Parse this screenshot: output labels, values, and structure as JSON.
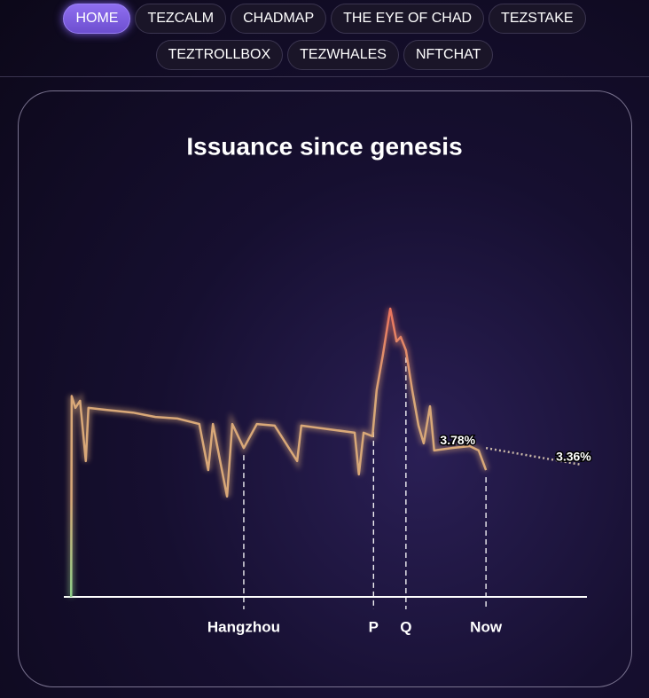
{
  "nav": {
    "items": [
      "HOME",
      "TEZCALM",
      "CHADMAP",
      "THE EYE OF CHAD",
      "TEZSTAKE",
      "TEZTROLLBOX",
      "TEZWHALES",
      "NFTCHAT"
    ]
  },
  "chart_data": {
    "type": "line",
    "title": "Issuance since genesis",
    "xlim": [
      0,
      100
    ],
    "ylim": [
      0,
      7.5
    ],
    "gradient": [
      "#8fd18a",
      "#d9a878",
      "#d9a878",
      "#ec6f5a"
    ],
    "series": [
      {
        "color": "#d9a878",
        "x": [
          1.4,
          1.5,
          2.2,
          3.1,
          4.2,
          4.7,
          8.1,
          13.2,
          17.5,
          21.7,
          25.9,
          27.6,
          28.5,
          31.2,
          32.2,
          34.4,
          36.9,
          40.3,
          44.6,
          45.4,
          50.5,
          55.6,
          56.4,
          57.3,
          59.0,
          59.8,
          61.0,
          62.4,
          63.6,
          64.4,
          65.4,
          66.6,
          67.8,
          68.8,
          70.0,
          70.8,
          74.2,
          77.6,
          79.3,
          80.7
        ],
        "values": [
          0,
          5.1,
          4.8,
          4.98,
          3.45,
          4.8,
          4.75,
          4.68,
          4.57,
          4.53,
          4.39,
          3.22,
          4.39,
          2.55,
          4.39,
          3.78,
          4.39,
          4.35,
          3.45,
          4.35,
          4.26,
          4.17,
          3.11,
          4.17,
          4.08,
          5.25,
          6.15,
          7.32,
          6.49,
          6.6,
          6.26,
          5.25,
          4.35,
          3.9,
          4.84,
          3.72,
          3.78,
          3.83,
          3.72,
          3.22
        ]
      }
    ],
    "projection": {
      "color": "#c9b8a8",
      "x": [
        80.7,
        98.8
      ],
      "values": [
        3.78,
        3.36
      ],
      "value_labels": [
        "3.78%",
        "3.36%"
      ]
    },
    "events": [
      {
        "label": "Hangzhou",
        "x": 34.4
      },
      {
        "label": "P",
        "x": 59.2
      },
      {
        "label": "Q",
        "x": 65.4
      },
      {
        "label": "Now",
        "x": 80.7
      }
    ]
  }
}
